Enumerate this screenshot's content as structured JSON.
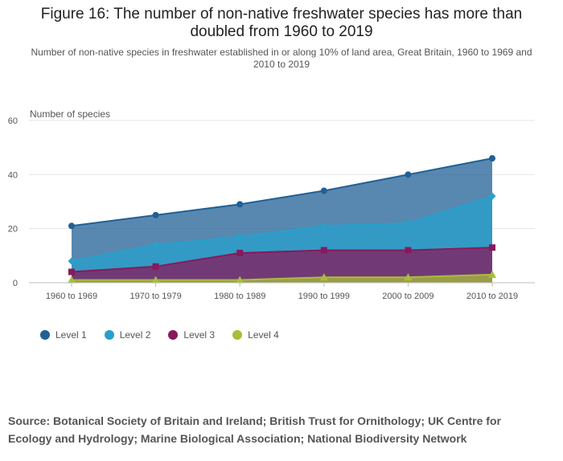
{
  "header": {
    "title": "Figure 16: The number of non-native freshwater species has more than doubled from 1960 to 2019",
    "subtitle": "Number of non-native species in freshwater established in or along 10% of land area, Great Britain, 1960 to 1969 and 2010 to 2019"
  },
  "chart_data": {
    "type": "area",
    "stacked": false,
    "title": "Figure 16: The number of non-native freshwater species has more than doubled from 1960 to 2019",
    "ylabel": "Number of species",
    "xlabel": "",
    "categories": [
      "1960 to 1969",
      "1970 to 1979",
      "1980 to 1989",
      "1990 to 1999",
      "2000 to 2009",
      "2010 to 2019"
    ],
    "ylim": [
      0,
      60
    ],
    "yticks": [
      "0",
      "20",
      "40",
      "60"
    ],
    "grid": true,
    "legend_position": "bottom-left",
    "series": [
      {
        "name": "Level 1",
        "values": [
          21,
          25,
          29,
          34,
          40,
          46
        ],
        "color": "#206095",
        "marker": "circle"
      },
      {
        "name": "Level 2",
        "values": [
          8,
          14,
          17,
          21,
          22,
          32
        ],
        "color": "#27a0cc",
        "marker": "diamond"
      },
      {
        "name": "Level 3",
        "values": [
          4,
          6,
          11,
          12,
          12,
          13
        ],
        "color": "#871a5b",
        "marker": "square"
      },
      {
        "name": "Level 4",
        "values": [
          1,
          1,
          1,
          2,
          2,
          3
        ],
        "color": "#a8bd3a",
        "marker": "triangle"
      }
    ]
  },
  "footer": {
    "source": "Source: Botanical Society of Britain and Ireland; British Trust for Ornithology; UK Centre for Ecology and Hydrology; Marine Biological Association; National Biodiversity Network"
  }
}
